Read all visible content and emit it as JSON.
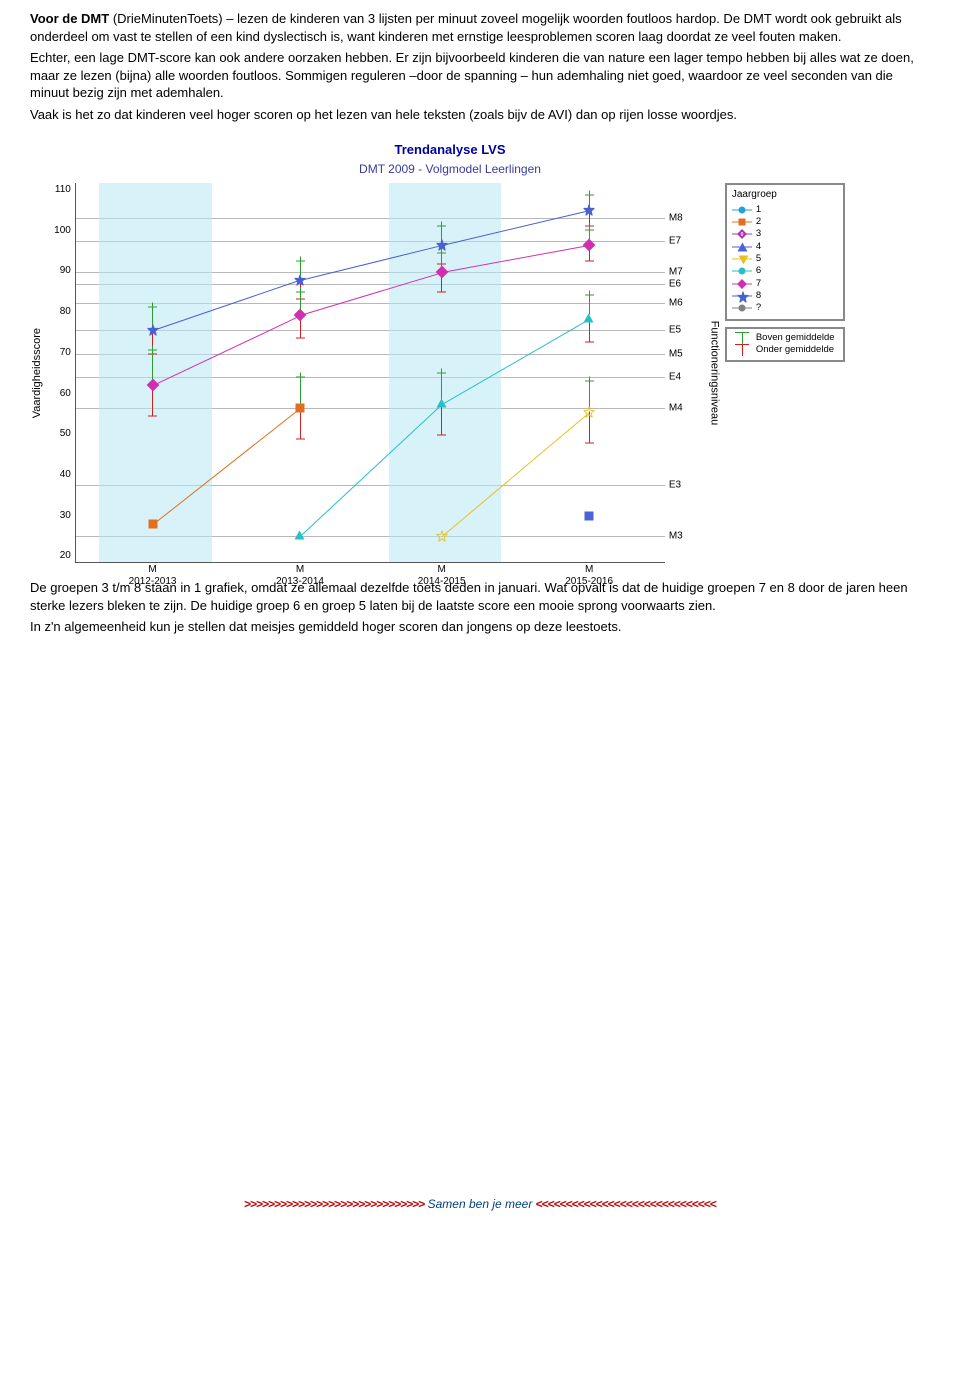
{
  "colors": {
    "band": "#b8e8f4",
    "grid": "#888888",
    "whisker_up": "#2e9e2e",
    "whisker_dn": "#d02020",
    "series": {
      "1": "#26a2da",
      "2": "#e07020",
      "3": "#b030b0",
      "4": "#4b63d6",
      "5": "#e8c020",
      "6": "#26c0c6",
      "7": "#d030b0",
      "8": "#4860d0",
      "q": "#808080"
    }
  },
  "intro": {
    "p1a": "Voor de DMT",
    "p1b": " (DrieMinutenToets) – lezen de kinderen van 3 lijsten per minuut zoveel mogelijk woorden foutloos hardop. De DMT wordt ook gebruikt als onderdeel om vast te stellen of een kind dyslectisch is, want kinderen met ernstige leesproblemen scoren laag doordat ze veel fouten maken.",
    "p2": "Echter, een lage DMT-score kan ook andere oorzaken hebben. Er zijn bijvoorbeeld kinderen die van nature een lager tempo hebben bij alles wat ze doen, maar ze lezen (bijna) alle woorden foutloos. Sommigen reguleren –door de spanning – hun ademhaling niet goed, waardoor ze veel seconden van die minuut bezig zijn met ademhalen.",
    "p3": "Vaak is het zo dat kinderen veel hoger scoren op het lezen van hele teksten (zoals bijv de AVI) dan op rijen losse woordjes."
  },
  "chart": {
    "title1": "Trendanalyse LVS",
    "title2": "DMT 2009 - Volgmodel Leerlingen",
    "ylabel": "Vaardigheidsscore",
    "ymin": 15,
    "ymax": 113,
    "yticks": [
      110,
      100,
      90,
      80,
      70,
      60,
      50,
      40,
      30,
      20
    ],
    "rlabel_axis": "Functioneringsniveau",
    "bands": [
      {
        "x": 4,
        "w": 19
      },
      {
        "x": 53,
        "w": 19
      }
    ],
    "xticks": [
      {
        "x": 13,
        "top": "M",
        "bot": "2012-2013"
      },
      {
        "x": 38,
        "top": "M",
        "bot": "2013-2014"
      },
      {
        "x": 62,
        "top": "M",
        "bot": "2014-2015"
      },
      {
        "x": 87,
        "top": "M",
        "bot": "2015-2016"
      }
    ],
    "right_labels": [
      {
        "y": 104,
        "t": "M8"
      },
      {
        "y": 98,
        "t": "E7"
      },
      {
        "y": 90,
        "t": "M7"
      },
      {
        "y": 87,
        "t": "E6"
      },
      {
        "y": 82,
        "t": "M6"
      },
      {
        "y": 75,
        "t": "E5"
      },
      {
        "y": 69,
        "t": "M5"
      },
      {
        "y": 63,
        "t": "E4"
      },
      {
        "y": 55,
        "t": "M4"
      },
      {
        "y": 35,
        "t": "E3"
      },
      {
        "y": 22,
        "t": "M3"
      }
    ],
    "series": [
      {
        "k": "8",
        "shape": "star",
        "pts": [
          {
            "x": 13,
            "y": 75,
            "wu": 6,
            "wd": 6
          },
          {
            "x": 38,
            "y": 88,
            "wu": 5,
            "wd": 5
          },
          {
            "x": 62,
            "y": 97,
            "wu": 5,
            "wd": 5
          },
          {
            "x": 87,
            "y": 106,
            "wu": 4,
            "wd": 4
          }
        ]
      },
      {
        "k": "7",
        "shape": "diamond",
        "pts": [
          {
            "x": 13,
            "y": 61,
            "wu": 9,
            "wd": 8
          },
          {
            "x": 38,
            "y": 79,
            "wu": 6,
            "wd": 6
          },
          {
            "x": 62,
            "y": 90,
            "wu": 5,
            "wd": 5
          },
          {
            "x": 87,
            "y": 97,
            "wu": 4,
            "wd": 4
          }
        ]
      },
      {
        "k": "6",
        "shape": "triangle",
        "pts": [
          {
            "x": 38,
            "y": 22,
            "wu": 0,
            "wd": 0
          },
          {
            "x": 62,
            "y": 56,
            "wu": 8,
            "wd": 8
          },
          {
            "x": 87,
            "y": 78,
            "wu": 6,
            "wd": 6
          }
        ]
      },
      {
        "k": "5",
        "shape": "starO",
        "pts": [
          {
            "x": 62,
            "y": 22,
            "wu": 0,
            "wd": 0
          },
          {
            "x": 87,
            "y": 54,
            "wu": 8,
            "wd": 8
          }
        ]
      },
      {
        "k": "4",
        "shape": "square",
        "pts": [
          {
            "x": 87,
            "y": 27,
            "wu": 0,
            "wd": 0
          }
        ]
      },
      {
        "k": "2",
        "shape": "square",
        "pts": [
          {
            "x": 13,
            "y": 25,
            "wu": 0,
            "wd": 0
          },
          {
            "x": 38,
            "y": 55,
            "wu": 8,
            "wd": 8
          }
        ]
      }
    ],
    "legend": {
      "title": "Jaargroep",
      "items": [
        {
          "k": "1",
          "label": "1",
          "shape": "circle"
        },
        {
          "k": "2",
          "label": "2",
          "shape": "square"
        },
        {
          "k": "3",
          "label": "3",
          "shape": "diamondO"
        },
        {
          "k": "4",
          "label": "4",
          "shape": "triangle"
        },
        {
          "k": "5",
          "label": "5",
          "shape": "triangleD"
        },
        {
          "k": "6",
          "label": "6",
          "shape": "circle"
        },
        {
          "k": "7",
          "label": "7",
          "shape": "diamond"
        },
        {
          "k": "8",
          "label": "8",
          "shape": "star"
        },
        {
          "k": "q",
          "label": "?",
          "shape": "circle"
        }
      ],
      "box2": {
        "boven": "Boven gemiddelde",
        "onder": "Onder gemiddelde"
      }
    }
  },
  "after": {
    "p1": "De groepen 3 t/m 8 staan in 1 grafiek, omdat ze allemaal dezelfde toets deden in januari. Wat opvalt is dat de huidige groepen 7 en 8 door de jaren heen sterke lezers bleken te zijn. De huidige groep 6 en groep 5 laten bij de laatste score een mooie sprong voorwaarts zien.",
    "p2": "In z'n algemeenheid kun je stellen dat meisjes gemiddeld hoger scoren dan jongens op deze leestoets."
  },
  "footer": {
    "left": ">>>>>>>>>>>>>>>>>>>>>>>>>>>>>>",
    "mid": " Samen ben je meer ",
    "right": "<<<<<<<<<<<<<<<<<<<<<<<<<<<<<<"
  }
}
